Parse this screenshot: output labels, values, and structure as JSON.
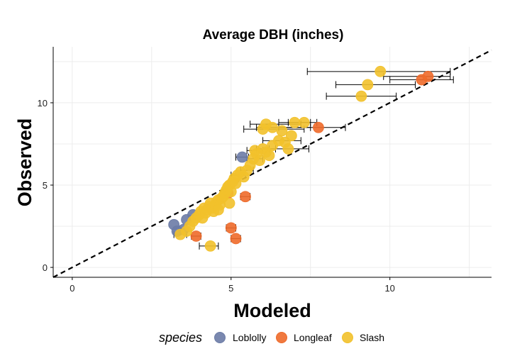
{
  "chart_data": {
    "type": "scatter",
    "title": "Average DBH (inches)",
    "xlabel": "Modeled",
    "ylabel": "Observed",
    "xlim": [
      -0.6,
      13.2
    ],
    "ylim": [
      -0.6,
      13.4
    ],
    "x_ticks": [
      0,
      5,
      10
    ],
    "y_ticks": [
      0,
      5,
      10
    ],
    "reference_line": "y = x",
    "grid": true,
    "legend": {
      "title": "species",
      "position": "bottom",
      "entries": [
        {
          "name": "Loblolly",
          "color": "#6B7BA6"
        },
        {
          "name": "Longleaf",
          "color": "#EE6A2A"
        },
        {
          "name": "Slash",
          "color": "#F2C12B"
        }
      ]
    },
    "series": [
      {
        "name": "Loblolly",
        "color": "#6B7BA6",
        "points": [
          {
            "x": 3.2,
            "y": 2.6
          },
          {
            "x": 3.3,
            "y": 2.2
          },
          {
            "x": 3.5,
            "y": 2.3
          },
          {
            "x": 3.6,
            "y": 2.9
          },
          {
            "x": 3.8,
            "y": 3.2
          },
          {
            "x": 5.35,
            "y": 6.7,
            "xerr": [
              5.15,
              5.55
            ]
          }
        ]
      },
      {
        "name": "Longleaf",
        "color": "#EE6A2A",
        "points": [
          {
            "x": 3.9,
            "y": 1.9,
            "xerr": [
              3.75,
              4.05
            ]
          },
          {
            "x": 5.0,
            "y": 2.4,
            "xerr": [
              4.85,
              5.15
            ]
          },
          {
            "x": 5.15,
            "y": 1.75,
            "xerr": [
              5.0,
              5.3
            ]
          },
          {
            "x": 5.45,
            "y": 4.3,
            "xerr": [
              5.3,
              5.6
            ]
          },
          {
            "x": 4.9,
            "y": 4.5
          },
          {
            "x": 7.75,
            "y": 8.5,
            "xerr": [
              6.5,
              8.6
            ]
          },
          {
            "x": 11.0,
            "y": 11.4,
            "xerr": [
              10.0,
              12.0
            ]
          },
          {
            "x": 11.2,
            "y": 11.6,
            "xerr": [
              9.8,
              11.9
            ]
          }
        ]
      },
      {
        "name": "Slash",
        "color": "#F2C12B",
        "points": [
          {
            "x": 4.35,
            "y": 1.3,
            "xerr": [
              4.0,
              4.6
            ]
          },
          {
            "x": 3.4,
            "y": 2.0,
            "xerr": [
              3.2,
              3.6
            ]
          },
          {
            "x": 3.6,
            "y": 2.2
          },
          {
            "x": 3.7,
            "y": 2.5
          },
          {
            "x": 3.8,
            "y": 2.8
          },
          {
            "x": 3.9,
            "y": 3.0
          },
          {
            "x": 4.0,
            "y": 3.2
          },
          {
            "x": 4.05,
            "y": 3.4
          },
          {
            "x": 4.1,
            "y": 3.0
          },
          {
            "x": 4.15,
            "y": 3.6
          },
          {
            "x": 4.2,
            "y": 3.3
          },
          {
            "x": 4.25,
            "y": 3.5
          },
          {
            "x": 4.3,
            "y": 3.7
          },
          {
            "x": 4.35,
            "y": 3.9
          },
          {
            "x": 4.4,
            "y": 3.6
          },
          {
            "x": 4.45,
            "y": 3.4
          },
          {
            "x": 4.5,
            "y": 3.8
          },
          {
            "x": 4.55,
            "y": 4.0
          },
          {
            "x": 4.6,
            "y": 4.1
          },
          {
            "x": 4.65,
            "y": 3.8
          },
          {
            "x": 4.7,
            "y": 4.2
          },
          {
            "x": 4.75,
            "y": 4.3
          },
          {
            "x": 4.8,
            "y": 4.5
          },
          {
            "x": 4.85,
            "y": 4.7
          },
          {
            "x": 4.9,
            "y": 4.9
          },
          {
            "x": 4.95,
            "y": 5.0
          },
          {
            "x": 5.0,
            "y": 4.6
          },
          {
            "x": 5.05,
            "y": 5.2
          },
          {
            "x": 5.1,
            "y": 5.4
          },
          {
            "x": 5.15,
            "y": 5.1
          },
          {
            "x": 4.95,
            "y": 3.9
          },
          {
            "x": 4.6,
            "y": 3.5
          },
          {
            "x": 5.2,
            "y": 5.6,
            "xerr": [
              5.0,
              5.45
            ]
          },
          {
            "x": 5.3,
            "y": 5.8
          },
          {
            "x": 5.4,
            "y": 5.5
          },
          {
            "x": 5.5,
            "y": 5.9,
            "xerr": [
              5.3,
              5.7
            ]
          },
          {
            "x": 5.6,
            "y": 6.2
          },
          {
            "x": 5.7,
            "y": 6.6,
            "xerr": [
              5.5,
              6.0
            ]
          },
          {
            "x": 5.75,
            "y": 7.1,
            "xerr": [
              5.5,
              6.0
            ]
          },
          {
            "x": 5.8,
            "y": 6.9
          },
          {
            "x": 5.9,
            "y": 6.5
          },
          {
            "x": 6.0,
            "y": 7.2,
            "xerr": [
              5.8,
              6.4
            ]
          },
          {
            "x": 6.1,
            "y": 7.0
          },
          {
            "x": 6.2,
            "y": 6.8
          },
          {
            "x": 6.3,
            "y": 7.4
          },
          {
            "x": 6.0,
            "y": 8.4,
            "xerr": [
              5.4,
              7.3
            ]
          },
          {
            "x": 6.1,
            "y": 8.7,
            "xerr": [
              5.6,
              7.2
            ]
          },
          {
            "x": 6.3,
            "y": 8.5,
            "xerr": [
              5.8,
              7.5
            ]
          },
          {
            "x": 6.5,
            "y": 7.7,
            "xerr": [
              6.0,
              7.2
            ]
          },
          {
            "x": 6.6,
            "y": 8.3
          },
          {
            "x": 6.7,
            "y": 7.6
          },
          {
            "x": 6.8,
            "y": 7.2,
            "xerr": [
              6.2,
              7.45
            ]
          },
          {
            "x": 6.9,
            "y": 8.0
          },
          {
            "x": 7.0,
            "y": 8.8,
            "xerr": [
              6.5,
              7.5
            ]
          },
          {
            "x": 7.3,
            "y": 8.8,
            "xerr": [
              6.8,
              7.7
            ]
          },
          {
            "x": 9.1,
            "y": 10.4,
            "xerr": [
              8.0,
              10.2
            ]
          },
          {
            "x": 9.3,
            "y": 11.1,
            "xerr": [
              8.3,
              10.8
            ]
          },
          {
            "x": 9.7,
            "y": 11.9,
            "xerr": [
              7.4,
              11.9
            ]
          }
        ]
      }
    ]
  }
}
